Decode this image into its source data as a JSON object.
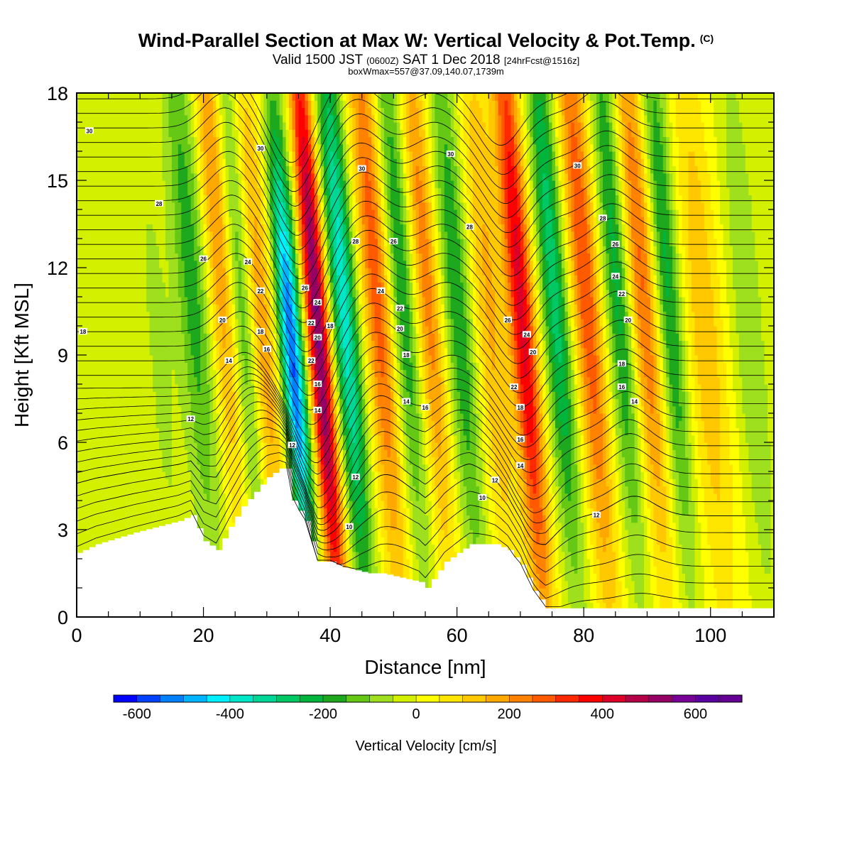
{
  "header": {
    "title": "Wind-Parallel Section at Max W: Vertical Velocity & Pot.Temp.",
    "copyright_mark": "(C)",
    "subtitle_main": "Valid 1500 JST",
    "subtitle_zulu": "(0600Z)",
    "subtitle_date": "SAT 1 Dec 2018",
    "subtitle_forecast": "[24hrFcst@1516z]",
    "subtitle2": "boxWmax=557@37.09,140.07,1739m"
  },
  "chart_data": {
    "type": "heatmap",
    "xlabel": "Distance [nm]",
    "ylabel": "Height [Kft MSL]",
    "xlim": [
      0,
      110
    ],
    "ylim": [
      0,
      18
    ],
    "x_ticks": [
      0,
      20,
      40,
      60,
      80,
      100
    ],
    "x_tick_labels": [
      "0",
      "20",
      "40",
      "60",
      "80",
      "100"
    ],
    "y_ticks": [
      0,
      3,
      6,
      9,
      12,
      15,
      18
    ],
    "y_tick_labels": [
      "0",
      "3",
      "6",
      "9",
      "12",
      "15",
      "18"
    ],
    "x_minor_step": 5,
    "y_minor_step": 1,
    "colorbar": {
      "title": "Vertical Velocity [cm/s]",
      "min": -650,
      "max": 700,
      "step": 50,
      "tick_values": [
        -600,
        -400,
        -200,
        0,
        200,
        400,
        600
      ],
      "tick_labels": [
        "-600",
        "-400",
        "-200",
        "0",
        "200",
        "400",
        "600"
      ],
      "colors": [
        "#0000ff",
        "#0040ff",
        "#0080ff",
        "#00b4ff",
        "#00f0ff",
        "#00e6c8",
        "#00d696",
        "#00c864",
        "#00b43c",
        "#1ea81e",
        "#64c814",
        "#9ee01e",
        "#d2f000",
        "#ffff00",
        "#ffe600",
        "#ffc800",
        "#ffa800",
        "#ff8200",
        "#ff5a00",
        "#ff2800",
        "#ff0000",
        "#dc0028",
        "#b40046",
        "#960064",
        "#780096",
        "#5a00a0",
        "#640096"
      ]
    },
    "w_field": {
      "x_units": "nm",
      "features": [
        {
          "x": 13,
          "w": -60,
          "width": 3,
          "z_center": 9,
          "z_spread": 8
        },
        {
          "x": 18,
          "w": -180,
          "width": 2.5,
          "z_center": 12,
          "z_spread": 8
        },
        {
          "x": 22,
          "w": 220,
          "width": 2.2,
          "z_center": 14,
          "z_spread": 8
        },
        {
          "x": 26,
          "w": -200,
          "width": 2.0,
          "z_center": 11,
          "z_spread": 8
        },
        {
          "x": 29,
          "w": 200,
          "width": 2.4,
          "z_center": 10,
          "z_spread": 8
        },
        {
          "x": 34,
          "w": -560,
          "width": 1.8,
          "z_center": 9,
          "z_spread": 6
        },
        {
          "x": 38,
          "w": 557,
          "width": 1.8,
          "z_center": 10,
          "z_spread": 9
        },
        {
          "x": 42,
          "w": -380,
          "width": 2.0,
          "z_center": 11,
          "z_spread": 8
        },
        {
          "x": 47,
          "w": 280,
          "width": 2.2,
          "z_center": 12,
          "z_spread": 9
        },
        {
          "x": 51,
          "w": -200,
          "width": 2.0,
          "z_center": 12,
          "z_spread": 8
        },
        {
          "x": 55,
          "w": 230,
          "width": 2.0,
          "z_center": 12,
          "z_spread": 8
        },
        {
          "x": 60,
          "w": -200,
          "width": 2.2,
          "z_center": 11,
          "z_spread": 8
        },
        {
          "x": 65,
          "w": 160,
          "width": 2.6,
          "z_center": 11,
          "z_spread": 8
        },
        {
          "x": 70,
          "w": 420,
          "width": 2.0,
          "z_center": 11,
          "z_spread": 9
        },
        {
          "x": 75,
          "w": -280,
          "width": 2.0,
          "z_center": 12,
          "z_spread": 8
        },
        {
          "x": 80,
          "w": 300,
          "width": 2.2,
          "z_center": 12,
          "z_spread": 9
        },
        {
          "x": 85,
          "w": -220,
          "width": 2.0,
          "z_center": 12,
          "z_spread": 8
        },
        {
          "x": 89,
          "w": 260,
          "width": 2.2,
          "z_center": 12,
          "z_spread": 8
        },
        {
          "x": 93,
          "w": -220,
          "width": 2.0,
          "z_center": 12,
          "z_spread": 8
        },
        {
          "x": 99,
          "w": 140,
          "width": 3.0,
          "z_center": 10,
          "z_spread": 8
        },
        {
          "x": 106,
          "w": -100,
          "width": 2.5,
          "z_center": 10,
          "z_spread": 8
        }
      ]
    },
    "terrain_kft": {
      "x": [
        0,
        3,
        9,
        16,
        18,
        20,
        22,
        24,
        26,
        28,
        30,
        32,
        33,
        34,
        36,
        37,
        38,
        40,
        42,
        44,
        46,
        48,
        50,
        52,
        54,
        55,
        56,
        58,
        60,
        62,
        64,
        66,
        68,
        70,
        72,
        74,
        80,
        90,
        100,
        110
      ],
      "z": [
        2.2,
        2.5,
        2.9,
        3.3,
        3.5,
        2.6,
        2.3,
        3.1,
        3.8,
        4.3,
        4.8,
        5.1,
        5.1,
        4.0,
        3.3,
        2.6,
        1.9,
        1.9,
        1.7,
        1.6,
        1.5,
        1.5,
        1.4,
        1.3,
        1.2,
        1.0,
        1.3,
        1.9,
        2.2,
        2.5,
        2.5,
        2.5,
        2.3,
        1.8,
        0.9,
        0.3,
        0.3,
        0.3,
        0.3,
        0.3
      ]
    },
    "theta_contours": {
      "count": 36,
      "base_kft": 0.3,
      "spacing_kft": 0.5,
      "wave_crests": [
        {
          "x": 26,
          "amplitude_kft": 1.2
        },
        {
          "x": 37,
          "amplitude_kft": -2.2
        },
        {
          "x": 47,
          "amplitude_kft": 1.0
        },
        {
          "x": 59,
          "amplitude_kft": 0.7
        },
        {
          "x": 70,
          "amplitude_kft": -1.6
        },
        {
          "x": 86,
          "amplitude_kft": 0.9
        }
      ],
      "labels": [
        {
          "x": 2,
          "z": 16.7,
          "text": "30"
        },
        {
          "x": 13,
          "z": 14.2,
          "text": "28"
        },
        {
          "x": 29,
          "z": 16.1,
          "text": "30"
        },
        {
          "x": 45,
          "z": 15.4,
          "text": "30"
        },
        {
          "x": 59,
          "z": 15.9,
          "text": "30"
        },
        {
          "x": 79,
          "z": 15.5,
          "text": "30"
        },
        {
          "x": 20,
          "z": 12.3,
          "text": "26"
        },
        {
          "x": 27,
          "z": 12.2,
          "text": "24"
        },
        {
          "x": 29,
          "z": 11.2,
          "text": "22"
        },
        {
          "x": 23,
          "z": 10.2,
          "text": "20"
        },
        {
          "x": 29,
          "z": 9.8,
          "text": "18"
        },
        {
          "x": 30,
          "z": 9.2,
          "text": "16"
        },
        {
          "x": 24,
          "z": 8.8,
          "text": "14"
        },
        {
          "x": 18,
          "z": 6.8,
          "text": "12"
        },
        {
          "x": 1,
          "z": 9.8,
          "text": "18"
        },
        {
          "x": 36,
          "z": 11.3,
          "text": "26"
        },
        {
          "x": 38,
          "z": 10.8,
          "text": "24"
        },
        {
          "x": 37,
          "z": 10.1,
          "text": "22"
        },
        {
          "x": 40,
          "z": 10.0,
          "text": "18"
        },
        {
          "x": 38,
          "z": 9.6,
          "text": "20"
        },
        {
          "x": 37,
          "z": 8.8,
          "text": "22"
        },
        {
          "x": 38,
          "z": 8.0,
          "text": "16"
        },
        {
          "x": 38,
          "z": 7.1,
          "text": "14"
        },
        {
          "x": 34,
          "z": 5.9,
          "text": "12"
        },
        {
          "x": 44,
          "z": 12.9,
          "text": "28"
        },
        {
          "x": 50,
          "z": 12.9,
          "text": "26"
        },
        {
          "x": 48,
          "z": 11.2,
          "text": "24"
        },
        {
          "x": 51,
          "z": 10.6,
          "text": "22"
        },
        {
          "x": 51,
          "z": 9.9,
          "text": "20"
        },
        {
          "x": 52,
          "z": 9.0,
          "text": "18"
        },
        {
          "x": 52,
          "z": 7.4,
          "text": "14"
        },
        {
          "x": 55,
          "z": 7.2,
          "text": "16"
        },
        {
          "x": 44,
          "z": 4.8,
          "text": "12"
        },
        {
          "x": 43,
          "z": 3.1,
          "text": "10"
        },
        {
          "x": 62,
          "z": 13.4,
          "text": "28"
        },
        {
          "x": 68,
          "z": 10.2,
          "text": "26"
        },
        {
          "x": 71,
          "z": 9.7,
          "text": "24"
        },
        {
          "x": 72,
          "z": 9.1,
          "text": "20"
        },
        {
          "x": 69,
          "z": 7.9,
          "text": "22"
        },
        {
          "x": 70,
          "z": 7.2,
          "text": "18"
        },
        {
          "x": 70,
          "z": 6.1,
          "text": "16"
        },
        {
          "x": 70,
          "z": 5.2,
          "text": "14"
        },
        {
          "x": 66,
          "z": 4.7,
          "text": "12"
        },
        {
          "x": 64,
          "z": 4.1,
          "text": "10"
        },
        {
          "x": 83,
          "z": 13.7,
          "text": "28"
        },
        {
          "x": 85,
          "z": 12.8,
          "text": "26"
        },
        {
          "x": 85,
          "z": 11.7,
          "text": "24"
        },
        {
          "x": 86,
          "z": 11.1,
          "text": "22"
        },
        {
          "x": 87,
          "z": 10.2,
          "text": "20"
        },
        {
          "x": 86,
          "z": 8.7,
          "text": "18"
        },
        {
          "x": 86,
          "z": 7.9,
          "text": "16"
        },
        {
          "x": 88,
          "z": 7.4,
          "text": "14"
        },
        {
          "x": 82,
          "z": 3.5,
          "text": "12"
        }
      ]
    }
  }
}
